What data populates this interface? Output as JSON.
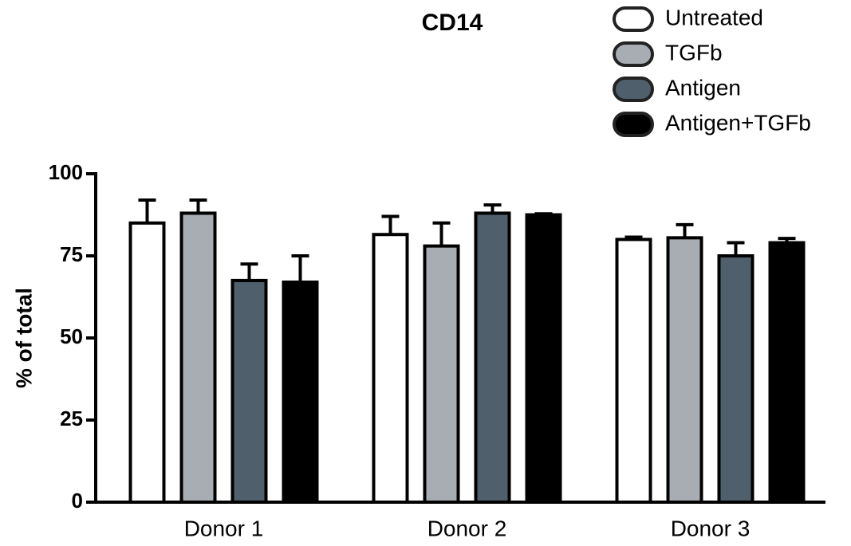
{
  "chart_data": {
    "type": "bar",
    "title": "CD14",
    "y_label": "% of total",
    "categories": [
      "Donor 1",
      "Donor 2",
      "Donor 3"
    ],
    "series": [
      {
        "name": "Untreated",
        "color": "#ffffff",
        "values": [
          85,
          81.5,
          80
        ],
        "errors": [
          7,
          5.5,
          0.7
        ]
      },
      {
        "name": "TGFb",
        "color": "#a7adb2",
        "values": [
          88,
          78,
          80.5
        ],
        "errors": [
          4,
          7,
          4
        ]
      },
      {
        "name": "Antigen",
        "color": "#4f5f6b",
        "values": [
          67.5,
          88,
          75
        ],
        "errors": [
          5,
          2.5,
          4
        ]
      },
      {
        "name": "Antigen+TGFb",
        "color": "#000000",
        "values": [
          67,
          87.5,
          79
        ],
        "errors": [
          8,
          0.3,
          1.3
        ]
      }
    ],
    "ylim": [
      0,
      100
    ],
    "yticks": [
      0,
      25,
      50,
      75,
      100
    ],
    "grid": false,
    "legend": "top-right"
  }
}
